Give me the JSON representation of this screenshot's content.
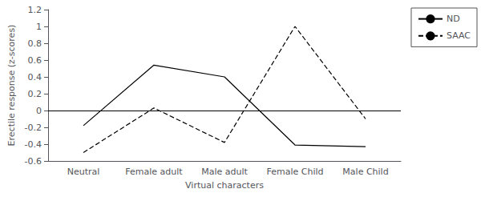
{
  "chart_data": {
    "type": "line",
    "categories": [
      "Neutral",
      "Female adult",
      "Male adult",
      "Female Child",
      "Male Child"
    ],
    "series": [
      {
        "name": "ND",
        "color": "#000000",
        "line_style": "solid",
        "values": [
          -0.18,
          0.54,
          0.4,
          -0.41,
          -0.43
        ]
      },
      {
        "name": "SAAC",
        "color": "#000000",
        "line_style": "dashed",
        "values": [
          -0.5,
          0.03,
          -0.38,
          1.0,
          -0.1
        ]
      }
    ],
    "xlabel": "Virtual characters",
    "ylabel": "Erectile response (z-scores)",
    "ylim": [
      -0.6,
      1.2
    ],
    "yticks": [
      -0.6,
      -0.4,
      -0.2,
      0.0,
      0.2,
      0.4,
      0.6,
      0.8,
      1.0,
      1.2
    ],
    "hline": 0.0,
    "grid": false,
    "legend": "right"
  }
}
